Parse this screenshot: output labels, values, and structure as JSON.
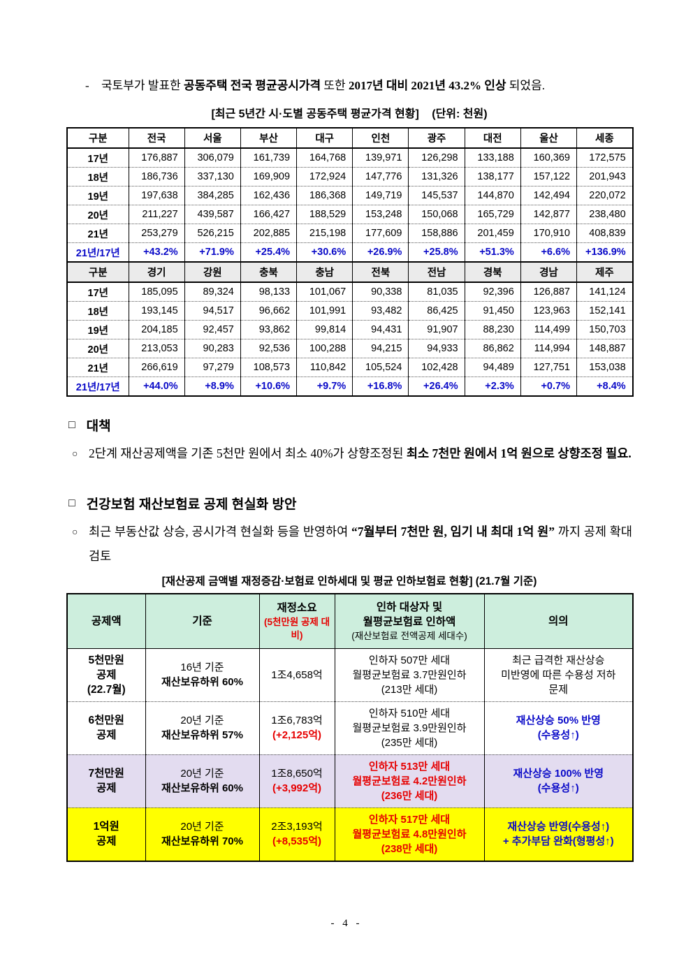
{
  "colors": {
    "blue": "#0a0ac8",
    "red": "#e60000",
    "mint": "#cdeedd",
    "lavender": "#e3dcf0",
    "yellow": "#ffff00",
    "gray_header": "#ebebeb"
  },
  "intro": {
    "marker": "-",
    "segments": [
      {
        "text": "국토부가 발표한 ",
        "bold": false
      },
      {
        "text": "공동주택 전국 평균공시가격",
        "bold": true
      },
      {
        "text": " 또한 ",
        "bold": false
      },
      {
        "text": "2017년 대비 2021년 43.2% 인상",
        "bold": true
      },
      {
        "text": " 되었음.",
        "bold": false
      }
    ]
  },
  "price_table": {
    "title": "[최근 5년간 시·도별 공동주택 평균가격 현황]",
    "unit": "(단위: 천원)",
    "sections": [
      {
        "header": [
          "구분",
          "전국",
          "서울",
          "부산",
          "대구",
          "인천",
          "광주",
          "대전",
          "울산",
          "세종"
        ],
        "rows": [
          {
            "label": "17년",
            "values": [
              "176,887",
              "306,079",
              "161,739",
              "164,768",
              "139,971",
              "126,298",
              "133,188",
              "160,369",
              "172,575"
            ],
            "highlight": false
          },
          {
            "label": "18년",
            "values": [
              "186,736",
              "337,130",
              "169,909",
              "172,924",
              "147,776",
              "131,326",
              "138,177",
              "157,122",
              "201,943"
            ],
            "highlight": false
          },
          {
            "label": "19년",
            "values": [
              "197,638",
              "384,285",
              "162,436",
              "186,368",
              "149,719",
              "145,537",
              "144,870",
              "142,494",
              "220,072"
            ],
            "highlight": false
          },
          {
            "label": "20년",
            "values": [
              "211,227",
              "439,587",
              "166,427",
              "188,529",
              "153,248",
              "150,068",
              "165,729",
              "142,877",
              "238,480"
            ],
            "highlight": false
          },
          {
            "label": "21년",
            "values": [
              "253,279",
              "526,215",
              "202,885",
              "215,198",
              "177,609",
              "158,886",
              "201,459",
              "170,910",
              "408,839"
            ],
            "highlight": false
          },
          {
            "label": "21년/17년",
            "values": [
              "+43.2%",
              "+71.9%",
              "+25.4%",
              "+30.6%",
              "+26.9%",
              "+25.8%",
              "+51.3%",
              "+6.6%",
              "+136.9%"
            ],
            "highlight": true
          }
        ]
      },
      {
        "header": [
          "구분",
          "경기",
          "강원",
          "충북",
          "충남",
          "전북",
          "전남",
          "경북",
          "경남",
          "제주"
        ],
        "rows": [
          {
            "label": "17년",
            "values": [
              "185,095",
              "89,324",
              "98,133",
              "101,067",
              "90,338",
              "81,035",
              "92,396",
              "126,887",
              "141,124"
            ],
            "highlight": false
          },
          {
            "label": "18년",
            "values": [
              "193,145",
              "94,517",
              "96,662",
              "101,991",
              "93,482",
              "86,425",
              "91,450",
              "123,963",
              "152,141"
            ],
            "highlight": false
          },
          {
            "label": "19년",
            "values": [
              "204,185",
              "92,457",
              "93,862",
              "99,814",
              "94,431",
              "91,907",
              "88,230",
              "114,499",
              "150,703"
            ],
            "highlight": false
          },
          {
            "label": "20년",
            "values": [
              "213,053",
              "90,283",
              "92,536",
              "100,288",
              "94,215",
              "94,933",
              "86,862",
              "114,994",
              "148,887"
            ],
            "highlight": false
          },
          {
            "label": "21년",
            "values": [
              "266,619",
              "97,279",
              "108,573",
              "110,842",
              "105,524",
              "102,428",
              "94,489",
              "127,751",
              "153,038"
            ],
            "highlight": false
          },
          {
            "label": "21년/17년",
            "values": [
              "+44.0%",
              "+8.9%",
              "+10.6%",
              "+9.7%",
              "+16.8%",
              "+26.4%",
              "+2.3%",
              "+0.7%",
              "+8.4%"
            ],
            "highlight": true
          }
        ]
      }
    ]
  },
  "countermeasure": {
    "marker": "□",
    "title": "대책",
    "bullet_marker": "○",
    "segments": [
      {
        "text": "2단계 재산공제액을 기존 5천만 원에서 최소 40%가 상향조정된 ",
        "bold": false
      },
      {
        "text": "최소 7천만 원에서 1억 원으로 상향조정 필요.",
        "bold": true
      }
    ]
  },
  "plan": {
    "marker": "□",
    "title": "건강보험 재산보험료 공제 현실화 방안",
    "bullet_marker": "○",
    "segments": [
      {
        "text": "최근 부동산값 상승, 공시가격 현실화 등을 반영하여 ",
        "bold": false
      },
      {
        "text": "“7월부터 7천만 원, 임기 내 최대 1억 원”",
        "bold": true
      },
      {
        "text": " 까지 공제 확대 검토",
        "bold": false
      }
    ]
  },
  "deduction_table": {
    "title": "[재산공제 금액별 재정증감·보험료 인하세대 및 평균 인하보험료 현황] (21.7월 기준)",
    "header": {
      "col1": "공제액",
      "col2": "기준",
      "col3_main": "재정소요",
      "col3_sub": "(5천만원 공제 대비)",
      "col4_line1": "인하 대상자 및",
      "col4_line2": "월평균보험료 인하액",
      "col4_sub": "(재산보험료 전액공제 세대수)",
      "col5": "의의"
    },
    "rows": [
      {
        "bg": "#ffffff",
        "deduction_lines": [
          "5천만원",
          "공제",
          "(22.7월)"
        ],
        "basis_line1": "16년 기준",
        "basis_line2": "재산보유하위 60%",
        "cost": "1조4,658억",
        "delta": "",
        "target_lines": [
          "인하자 507만 세대",
          "월평균보험료 3.7만원인하",
          "(213만 세대)"
        ],
        "target_style": "black",
        "meaning_lines": [
          "최근 급격한 재산상승",
          "미반영에 따른 수용성 저하",
          "문제"
        ],
        "meaning_style": "black"
      },
      {
        "bg": "#ffffff",
        "deduction_lines": [
          "6천만원",
          "공제"
        ],
        "basis_line1": "20년 기준",
        "basis_line2": "재산보유하위 57%",
        "cost": "1조6,783억",
        "delta": "(+2,125억)",
        "target_lines": [
          "인하자 510만 세대",
          "월평균보험료 3.9만원인하",
          "(235만 세대)"
        ],
        "target_style": "black",
        "meaning_lines": [
          "재산상승 50% 반영",
          "(수용성↑)"
        ],
        "meaning_style": "blue"
      },
      {
        "bg": "#e3dcf0",
        "deduction_lines": [
          "7천만원",
          "공제"
        ],
        "basis_line1": "20년 기준",
        "basis_line2": "재산보유하위 60%",
        "cost": "1조8,650억",
        "delta": "(+3,992억)",
        "target_lines": [
          "인하자 513만 세대",
          "월평균보험료 4.2만원인하",
          "(236만 세대)"
        ],
        "target_style": "red",
        "meaning_lines": [
          "재산상승 100% 반영",
          "(수용성↑)"
        ],
        "meaning_style": "blue"
      },
      {
        "bg": "#ffff00",
        "deduction_lines": [
          "1억원",
          "공제"
        ],
        "basis_line1": "20년 기준",
        "basis_line2": "재산보유하위 70%",
        "cost": "2조3,193억",
        "delta": "(+8,535억)",
        "target_lines": [
          "인하자 517만 세대",
          "월평균보험료 4.8만원인하",
          "(238만 세대)"
        ],
        "target_style": "red",
        "meaning_lines": [
          "재산상승 반영(수용성↑)",
          "+ 추가부담 완화(형평성↑)"
        ],
        "meaning_style": "blue"
      }
    ]
  },
  "page": {
    "footer": "- 4 -"
  }
}
